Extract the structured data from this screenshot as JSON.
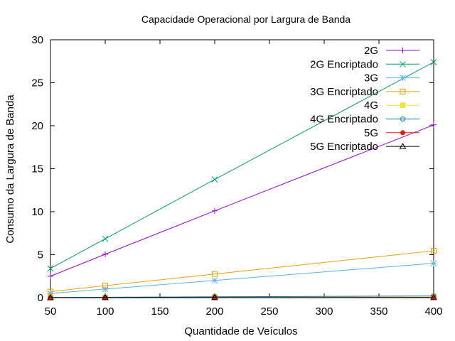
{
  "chart_data": {
    "type": "line",
    "title": "Capacidade Operacional por Largura de Banda",
    "xlabel": "Quantidade de Veículos",
    "ylabel": "Consumo da Largura de Banda",
    "xlim": [
      50,
      400
    ],
    "ylim": [
      0,
      30
    ],
    "x_ticks": [
      50,
      100,
      150,
      200,
      250,
      300,
      350,
      400
    ],
    "y_ticks": [
      0,
      5,
      10,
      15,
      20,
      25,
      30
    ],
    "grid": false,
    "legend_position": "top-right",
    "x": [
      50,
      100,
      200,
      400
    ],
    "series": [
      {
        "name": "2G",
        "values": [
          2.5,
          5.05,
          10.1,
          20.1
        ],
        "color": "#9400d3",
        "marker": "plus"
      },
      {
        "name": "2G Encriptado",
        "values": [
          3.4,
          6.85,
          13.75,
          27.4
        ],
        "color": "#009e73",
        "marker": "cross"
      },
      {
        "name": "3G",
        "values": [
          0.5,
          1.0,
          2.0,
          4.0
        ],
        "color": "#56b4e9",
        "marker": "star"
      },
      {
        "name": "3G Encriptado",
        "values": [
          0.7,
          1.4,
          2.75,
          5.45
        ],
        "color": "#e69f00",
        "marker": "open-square"
      },
      {
        "name": "4G",
        "values": [
          0.02,
          0.04,
          0.08,
          0.16
        ],
        "color": "#f0e442",
        "marker": "filled-square"
      },
      {
        "name": "4G Encriptado",
        "values": [
          0.03,
          0.05,
          0.1,
          0.2
        ],
        "color": "#0072b2",
        "marker": "open-circle"
      },
      {
        "name": "5G",
        "values": [
          0.002,
          0.004,
          0.008,
          0.016
        ],
        "color": "#e51e10",
        "marker": "filled-circle"
      },
      {
        "name": "5G Encriptado",
        "values": [
          0.003,
          0.006,
          0.012,
          0.024
        ],
        "color": "#000000",
        "marker": "open-triangle"
      }
    ]
  }
}
